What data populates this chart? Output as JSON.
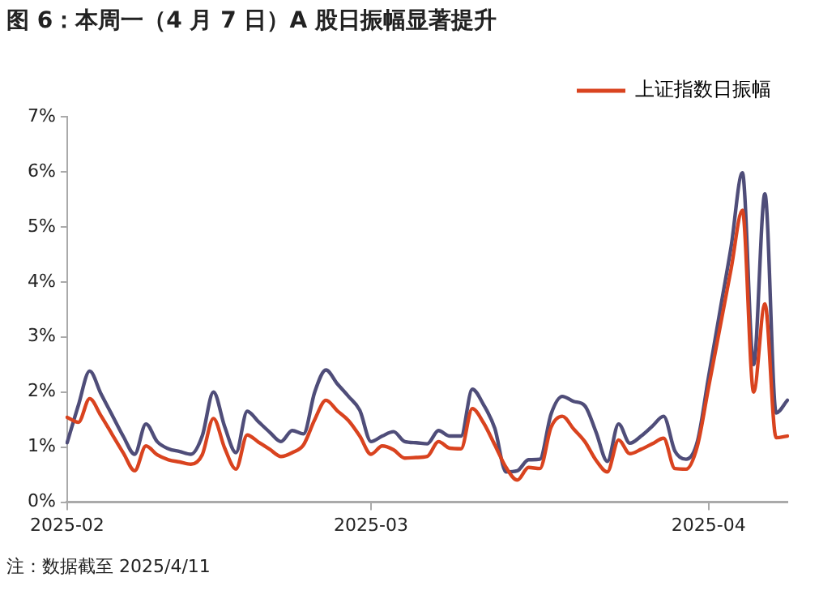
{
  "chart_data": {
    "type": "line",
    "title": "图 6：本周一（4 月 7 日）A 股日振幅显著提升",
    "categories": [
      "2025-02",
      null,
      null,
      null,
      null,
      null,
      null,
      null,
      null,
      null,
      null,
      null,
      null,
      null,
      null,
      null,
      null,
      null,
      null,
      null,
      null,
      null,
      null,
      null,
      null,
      null,
      null,
      "2025-03",
      null,
      null,
      null,
      null,
      null,
      null,
      null,
      null,
      null,
      null,
      null,
      null,
      null,
      null,
      null,
      null,
      null,
      null,
      null,
      null,
      null,
      null,
      null,
      null,
      null,
      null,
      null,
      null,
      null,
      "2025-04",
      null,
      null,
      null,
      null,
      null,
      null,
      null
    ],
    "series": [
      {
        "name": "上证指数日振幅",
        "color": "#d9431f",
        "values": [
          1.54,
          1.45,
          1.88,
          1.57,
          1.23,
          0.89,
          0.57,
          1.02,
          0.86,
          0.77,
          0.73,
          0.69,
          0.86,
          1.52,
          0.98,
          0.6,
          1.22,
          1.09,
          0.96,
          0.83,
          0.9,
          1.04,
          1.5,
          1.85,
          1.66,
          1.48,
          1.2,
          0.87,
          1.02,
          0.95,
          0.8,
          0.81,
          0.83,
          1.1,
          0.98,
          0.97,
          1.7,
          1.44,
          1.04,
          0.63,
          0.4,
          0.63,
          0.61,
          1.36,
          1.56,
          1.33,
          1.1,
          0.76,
          0.55,
          1.13,
          0.88,
          0.96,
          1.06,
          1.16,
          0.61,
          0.6,
          1.02,
          2.09,
          3.16,
          4.24,
          5.3,
          2.0,
          3.6,
          1.17,
          1.2
        ]
      },
      {
        "color": "#4f4d79",
        "values": [
          1.08,
          1.76,
          2.38,
          1.97,
          1.58,
          1.19,
          0.87,
          1.42,
          1.1,
          0.97,
          0.92,
          0.87,
          1.2,
          2.0,
          1.37,
          0.9,
          1.65,
          1.46,
          1.27,
          1.1,
          1.3,
          1.24,
          2.0,
          2.4,
          2.15,
          1.92,
          1.67,
          1.1,
          1.2,
          1.28,
          1.1,
          1.08,
          1.06,
          1.3,
          1.2,
          1.2,
          2.05,
          1.77,
          1.34,
          0.55,
          0.57,
          0.77,
          0.78,
          1.6,
          1.92,
          1.83,
          1.75,
          1.27,
          0.74,
          1.42,
          1.07,
          1.2,
          1.38,
          1.56,
          0.93,
          0.78,
          1.1,
          2.28,
          3.46,
          4.64,
          5.98,
          2.5,
          5.6,
          1.62,
          1.85
        ]
      }
    ],
    "ylim": [
      0,
      7
    ],
    "yticks": [
      {
        "value": 0,
        "label": "0%"
      },
      {
        "value": 1,
        "label": "1%"
      },
      {
        "value": 2,
        "label": "2%"
      },
      {
        "value": 3,
        "label": "3%"
      },
      {
        "value": 4,
        "label": "4%"
      },
      {
        "value": 5,
        "label": "5%"
      },
      {
        "value": 6,
        "label": "6%"
      },
      {
        "value": 7,
        "label": "7%"
      }
    ],
    "grid": false,
    "legend": "top right",
    "marker": "none",
    "line_style": "solid",
    "annotations": [
      "注：数据截至 2025/4/11"
    ]
  }
}
